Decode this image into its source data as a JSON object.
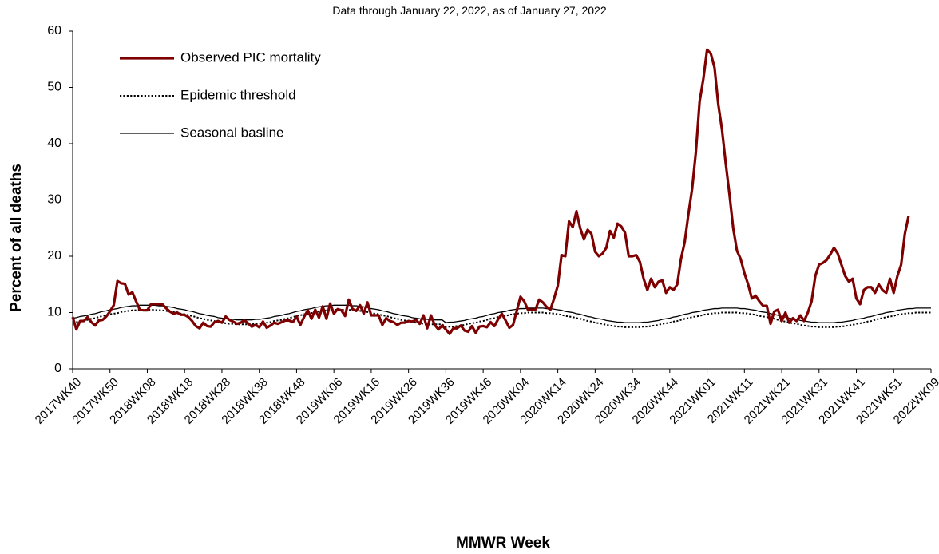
{
  "chart_data": {
    "type": "line",
    "subtitle": "Data through  January  22, 2022, as of January  27, 2022",
    "y_label": "Percent of all deaths",
    "x_label": "MMWR Week",
    "ylim": [
      0,
      60
    ],
    "yticks": [
      0,
      10,
      20,
      30,
      40,
      50,
      60
    ],
    "grid": false,
    "legend": "upper left",
    "categories": [
      "2017WK40",
      null,
      null,
      null,
      null,
      null,
      null,
      null,
      null,
      null,
      "2017WK50",
      null,
      null,
      null,
      null,
      null,
      null,
      null,
      null,
      null,
      "2018WK08",
      null,
      null,
      null,
      null,
      null,
      null,
      null,
      null,
      null,
      "2018WK18",
      null,
      null,
      null,
      null,
      null,
      null,
      null,
      null,
      null,
      "2018WK28",
      null,
      null,
      null,
      null,
      null,
      null,
      null,
      null,
      null,
      "2018WK38",
      null,
      null,
      null,
      null,
      null,
      null,
      null,
      null,
      null,
      "2018WK48",
      null,
      null,
      null,
      null,
      null,
      null,
      null,
      null,
      null,
      "2019WK06",
      null,
      null,
      null,
      null,
      null,
      null,
      null,
      null,
      null,
      "2019WK16",
      null,
      null,
      null,
      null,
      null,
      null,
      null,
      null,
      null,
      "2019WK26",
      null,
      null,
      null,
      null,
      null,
      null,
      null,
      null,
      null,
      "2019WK36",
      null,
      null,
      null,
      null,
      null,
      null,
      null,
      null,
      null,
      "2019WK46",
      null,
      null,
      null,
      null,
      null,
      null,
      null,
      null,
      null,
      "2020WK04",
      null,
      null,
      null,
      null,
      null,
      null,
      null,
      null,
      null,
      "2020WK14",
      null,
      null,
      null,
      null,
      null,
      null,
      null,
      null,
      null,
      "2020WK24",
      null,
      null,
      null,
      null,
      null,
      null,
      null,
      null,
      null,
      "2020WK34",
      null,
      null,
      null,
      null,
      null,
      null,
      null,
      null,
      null,
      "2020WK44",
      null,
      null,
      null,
      null,
      null,
      null,
      null,
      null,
      null,
      "2021WK01",
      null,
      null,
      null,
      null,
      null,
      null,
      null,
      null,
      null,
      "2021WK11",
      null,
      null,
      null,
      null,
      null,
      null,
      null,
      null,
      null,
      "2021WK21",
      null,
      null,
      null,
      null,
      null,
      null,
      null,
      null,
      null,
      "2021WK31",
      null,
      null,
      null,
      null,
      null,
      null,
      null,
      null,
      null,
      "2021WK41",
      null,
      null,
      null,
      null,
      null,
      null,
      null,
      null,
      null,
      "2021WK51",
      null,
      null,
      null,
      null,
      null,
      null,
      null,
      null,
      null,
      "2022WK09"
    ],
    "series": [
      {
        "name": "Observed PIC mortality",
        "color": "#7f0000",
        "style": "solid",
        "width": 3.2,
        "values": [
          9.2,
          7,
          8.5,
          8.5,
          9.2,
          8.3,
          7.7,
          8.6,
          8.7,
          9.3,
          10.2,
          11.3,
          15.6,
          15.2,
          15.1,
          13.2,
          13.6,
          12,
          10.5,
          10.4,
          10.4,
          11.5,
          11.5,
          11.5,
          11.5,
          10.8,
          10.2,
          9.8,
          10,
          9.6,
          9.6,
          9.2,
          8.5,
          7.6,
          7.2,
          8.2,
          7.6,
          7.5,
          8.3,
          8.5,
          8.2,
          9.3,
          8.7,
          8.4,
          8,
          8.2,
          8.6,
          8.1,
          7.5,
          7.8,
          7.4,
          8.4,
          7.3,
          7.7,
          8.2,
          8,
          8.3,
          8.6,
          8.6,
          8.3,
          9.3,
          7.8,
          9.2,
          10.4,
          8.9,
          10.5,
          9.1,
          11.1,
          8.9,
          11.6,
          9.8,
          10.6,
          10.4,
          9.4,
          12.3,
          10.6,
          10.3,
          11.3,
          9.8,
          11.8,
          9.5,
          9.5,
          9.5,
          7.8,
          9,
          8.5,
          8.3,
          7.8,
          8.2,
          8.2,
          8.5,
          8.4,
          8.7,
          8,
          9.5,
          7.2,
          9.5,
          7.8,
          7,
          7.7,
          7,
          6.2,
          7.2,
          7.2,
          7.7,
          6.8,
          6.6,
          7.6,
          6.4,
          7.5,
          7.6,
          7.4,
          8.3,
          7.6,
          8.8,
          9.8,
          8.6,
          7.3,
          7.8,
          10.3,
          12.8,
          12,
          10.5,
          10.5,
          10.5,
          12.3,
          11.8,
          11,
          10.5,
          12.5,
          14.8,
          20.2,
          20,
          26.2,
          25.2,
          28,
          25,
          23,
          24.7,
          24,
          20.8,
          20,
          20.5,
          21.5,
          24.5,
          23.3,
          25.8,
          25.3,
          24.2,
          20,
          20,
          20.2,
          19,
          16,
          14,
          16,
          14.5,
          15.5,
          15.7,
          13.5,
          14.5,
          14,
          15,
          19.5,
          22.5,
          27.5,
          32,
          38.5,
          47.5,
          51.5,
          56.7,
          56,
          53.5,
          47,
          42.5,
          36.5,
          31,
          25,
          21,
          19.5,
          17,
          15,
          12.5,
          13,
          12,
          11.2,
          11.2,
          8,
          10.2,
          10.5,
          8.5,
          10,
          8.2,
          9,
          8.5,
          9.5,
          8.5,
          10,
          12,
          16.5,
          18.5,
          18.8,
          19.3,
          20.3,
          21.5,
          20.5,
          18.5,
          16.5,
          15.5,
          16,
          12.5,
          11.5,
          14,
          14.5,
          14.5,
          13.5,
          15,
          14,
          13.5,
          16,
          13.5,
          16.5,
          18.5,
          24,
          27.2,
          null,
          null,
          null,
          null,
          null,
          null
        ]
      },
      {
        "name": "Epidemic threshold",
        "color": "#000000",
        "style": "dotted",
        "width": 2,
        "values": [
          8.2,
          8.3,
          8.5,
          8.6,
          8.7,
          8.9,
          9.0,
          9.2,
          9.4,
          9.5,
          9.7,
          9.8,
          9.9,
          10.1,
          10.2,
          10.3,
          10.4,
          10.4,
          10.5,
          10.5,
          10.5,
          10.5,
          10.5,
          10.4,
          10.4,
          10.3,
          10.2,
          10.1,
          9.9,
          9.8,
          9.7,
          9.5,
          9.4,
          9.2,
          9.0,
          8.9,
          8.7,
          8.6,
          8.5,
          8.3,
          8.2,
          8.1,
          8.0,
          8.0,
          7.9,
          7.9,
          7.9,
          7.9,
          7.9,
          8.0,
          8.0,
          8.1,
          8.2,
          8.3,
          8.5,
          8.6,
          8.7,
          8.9,
          9.0,
          9.2,
          9.4,
          9.5,
          9.7,
          9.8,
          9.9,
          10.1,
          10.2,
          10.3,
          10.4,
          10.4,
          10.5,
          10.5,
          10.5,
          10.5,
          10.5,
          10.4,
          10.4,
          10.3,
          10.2,
          10.1,
          9.9,
          9.8,
          9.7,
          9.5,
          9.4,
          9.2,
          9.0,
          8.9,
          8.7,
          8.6,
          8.5,
          8.3,
          8.2,
          8.1,
          8.0,
          8.0,
          7.9,
          7.9,
          7.9,
          7.9,
          7.4,
          7.5,
          7.5,
          7.6,
          7.7,
          7.8,
          8.0,
          8.1,
          8.2,
          8.4,
          8.5,
          8.7,
          8.9,
          9.0,
          9.2,
          9.3,
          9.4,
          9.6,
          9.7,
          9.8,
          9.9,
          9.9,
          10.0,
          10.0,
          10.0,
          10.0,
          10.0,
          9.9,
          9.9,
          9.8,
          9.7,
          9.6,
          9.4,
          9.3,
          9.2,
          9.0,
          8.9,
          8.7,
          8.5,
          8.4,
          8.2,
          8.1,
          8.0,
          7.8,
          7.7,
          7.6,
          7.5,
          7.5,
          7.4,
          7.4,
          7.4,
          7.4,
          7.4,
          7.5,
          7.5,
          7.6,
          7.7,
          7.8,
          8.0,
          8.1,
          8.2,
          8.4,
          8.5,
          8.7,
          8.9,
          9.0,
          9.2,
          9.3,
          9.4,
          9.6,
          9.7,
          9.8,
          9.9,
          9.9,
          10.0,
          10.0,
          10.0,
          10.0,
          10.0,
          9.9,
          9.9,
          9.8,
          9.7,
          9.6,
          9.4,
          9.3,
          9.2,
          9.0,
          8.9,
          8.7,
          8.5,
          8.4,
          8.2,
          8.1,
          8.0,
          7.8,
          7.7,
          7.6,
          7.5,
          7.5,
          7.4,
          7.4,
          7.4,
          7.4,
          7.4,
          7.5,
          7.5,
          7.6,
          7.7,
          7.8,
          8.0,
          8.1,
          8.2,
          8.4,
          8.5,
          8.7,
          8.9,
          9.0,
          9.2,
          9.3,
          9.4,
          9.6,
          9.7,
          9.8,
          9.9,
          9.9,
          10.0,
          10.0,
          10.0,
          10.0,
          10.0
        ]
      },
      {
        "name": "Seasonal basline",
        "color": "#000000",
        "style": "solid",
        "width": 1.3,
        "values": [
          9.0,
          9.1,
          9.3,
          9.4,
          9.5,
          9.7,
          9.8,
          10.0,
          10.2,
          10.3,
          10.5,
          10.6,
          10.7,
          10.9,
          11.0,
          11.1,
          11.2,
          11.2,
          11.3,
          11.3,
          11.3,
          11.3,
          11.3,
          11.2,
          11.2,
          11.1,
          11.0,
          10.9,
          10.7,
          10.6,
          10.5,
          10.3,
          10.2,
          10.0,
          9.8,
          9.7,
          9.5,
          9.4,
          9.3,
          9.1,
          9.0,
          8.9,
          8.8,
          8.8,
          8.7,
          8.7,
          8.7,
          8.7,
          8.7,
          8.8,
          8.8,
          8.9,
          9.0,
          9.1,
          9.3,
          9.4,
          9.5,
          9.7,
          9.8,
          10.0,
          10.2,
          10.3,
          10.5,
          10.6,
          10.7,
          10.9,
          11.0,
          11.1,
          11.2,
          11.2,
          11.3,
          11.3,
          11.3,
          11.3,
          11.3,
          11.2,
          11.2,
          11.1,
          11.0,
          10.9,
          10.7,
          10.6,
          10.5,
          10.3,
          10.2,
          10.0,
          9.8,
          9.7,
          9.5,
          9.4,
          9.3,
          9.1,
          9.0,
          8.9,
          8.8,
          8.8,
          8.7,
          8.7,
          8.7,
          8.7,
          8.2,
          8.3,
          8.3,
          8.4,
          8.5,
          8.6,
          8.8,
          8.9,
          9.0,
          9.2,
          9.3,
          9.5,
          9.7,
          9.8,
          10.0,
          10.1,
          10.2,
          10.4,
          10.5,
          10.6,
          10.7,
          10.7,
          10.8,
          10.8,
          10.8,
          10.8,
          10.8,
          10.7,
          10.7,
          10.6,
          10.5,
          10.4,
          10.2,
          10.1,
          10.0,
          9.8,
          9.7,
          9.5,
          9.3,
          9.2,
          9.0,
          8.9,
          8.8,
          8.6,
          8.5,
          8.4,
          8.3,
          8.3,
          8.2,
          8.2,
          8.2,
          8.2,
          8.2,
          8.3,
          8.3,
          8.4,
          8.5,
          8.6,
          8.8,
          8.9,
          9.0,
          9.2,
          9.3,
          9.5,
          9.7,
          9.8,
          10.0,
          10.1,
          10.2,
          10.4,
          10.5,
          10.6,
          10.7,
          10.7,
          10.8,
          10.8,
          10.8,
          10.8,
          10.8,
          10.7,
          10.7,
          10.6,
          10.5,
          10.4,
          10.2,
          10.1,
          10.0,
          9.8,
          9.7,
          9.5,
          9.3,
          9.2,
          9.0,
          8.9,
          8.8,
          8.6,
          8.5,
          8.4,
          8.3,
          8.3,
          8.2,
          8.2,
          8.2,
          8.2,
          8.2,
          8.3,
          8.3,
          8.4,
          8.5,
          8.6,
          8.8,
          8.9,
          9.0,
          9.2,
          9.3,
          9.5,
          9.7,
          9.8,
          10.0,
          10.1,
          10.2,
          10.4,
          10.5,
          10.6,
          10.7,
          10.7,
          10.8,
          10.8,
          10.8,
          10.8,
          10.8
        ]
      }
    ]
  }
}
